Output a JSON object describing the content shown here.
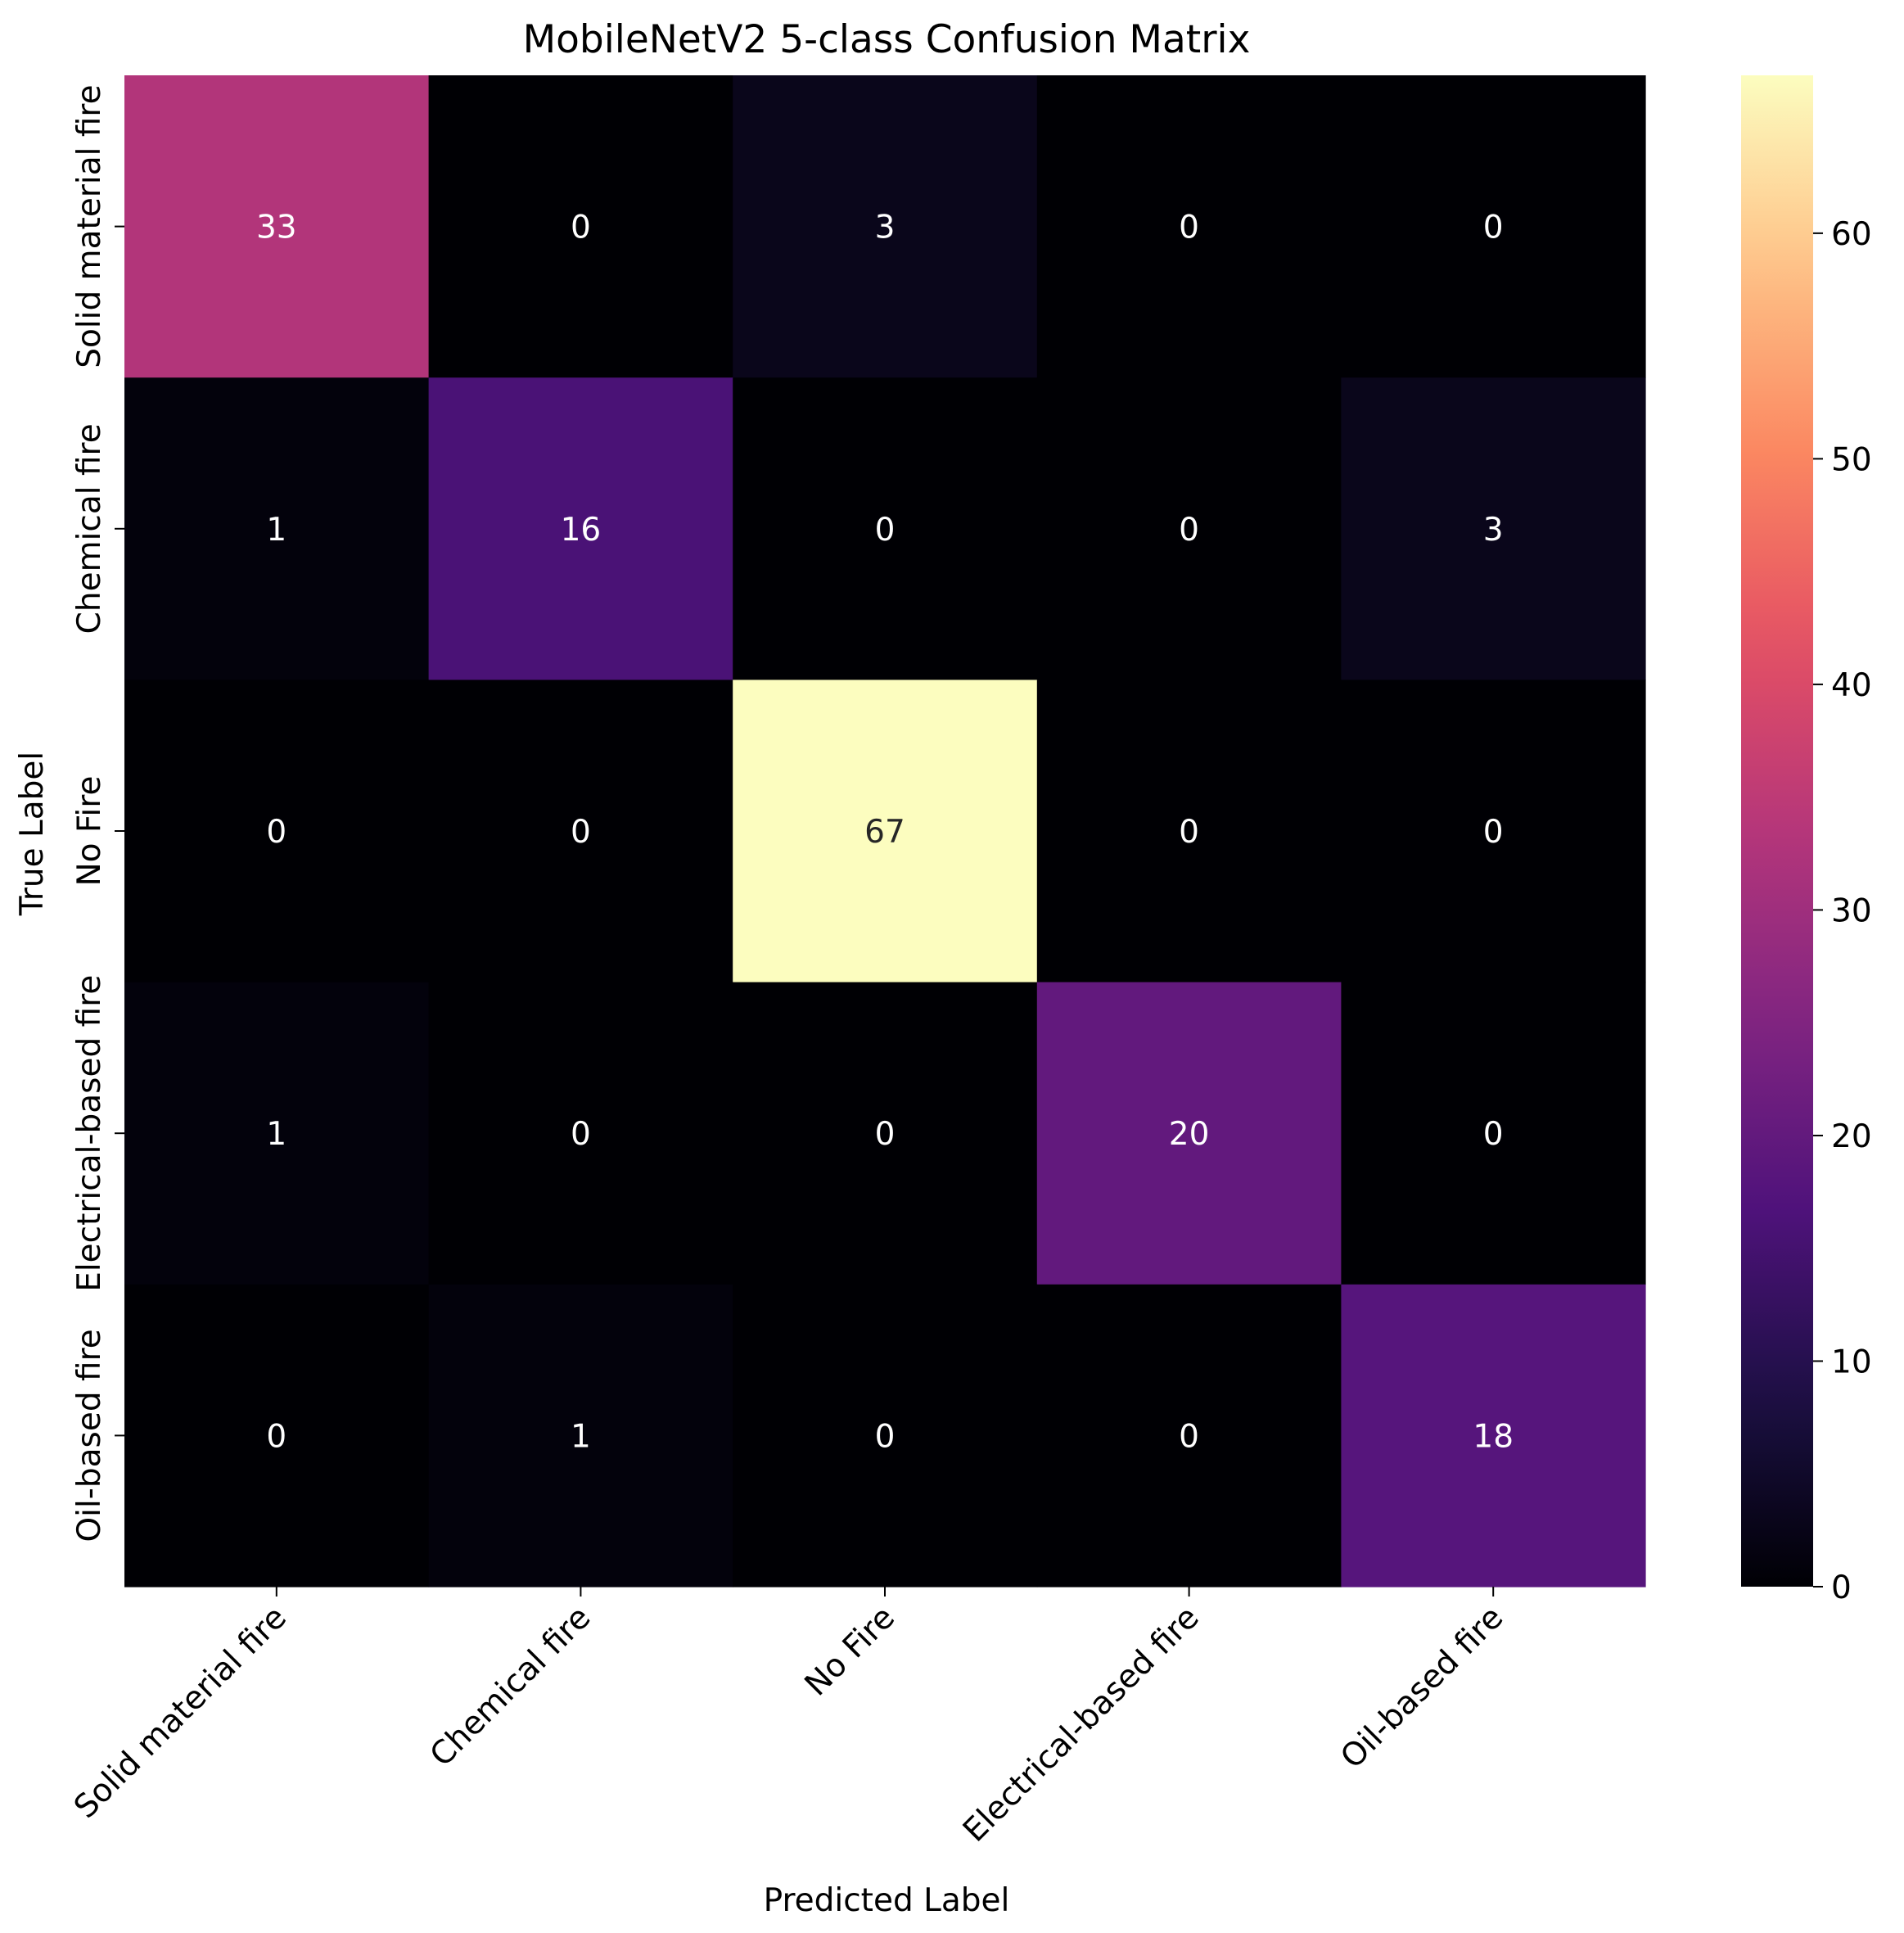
{
  "chart_data": {
    "type": "heatmap",
    "title": "MobileNetV2 5-class Confusion Matrix",
    "xlabel": "Predicted Label",
    "ylabel": "True Label",
    "x_categories": [
      "Solid material fire",
      "Chemical fire",
      "No Fire",
      "Electrical-based fire",
      "Oil-based fire"
    ],
    "y_categories": [
      "Solid material fire",
      "Chemical fire",
      "No Fire",
      "Electrical-based fire",
      "Oil-based fire"
    ],
    "values": [
      [
        33,
        0,
        3,
        0,
        0
      ],
      [
        1,
        16,
        0,
        0,
        3
      ],
      [
        0,
        0,
        67,
        0,
        0
      ],
      [
        1,
        0,
        0,
        20,
        0
      ],
      [
        0,
        1,
        0,
        0,
        18
      ]
    ],
    "colormap": "magma",
    "vmin": 0,
    "vmax": 67,
    "colorbar_ticks": [
      0,
      10,
      20,
      30,
      40,
      50,
      60
    ],
    "annotation_colors": {
      "on_dark": "#ffffff",
      "on_light": "#262626"
    }
  }
}
